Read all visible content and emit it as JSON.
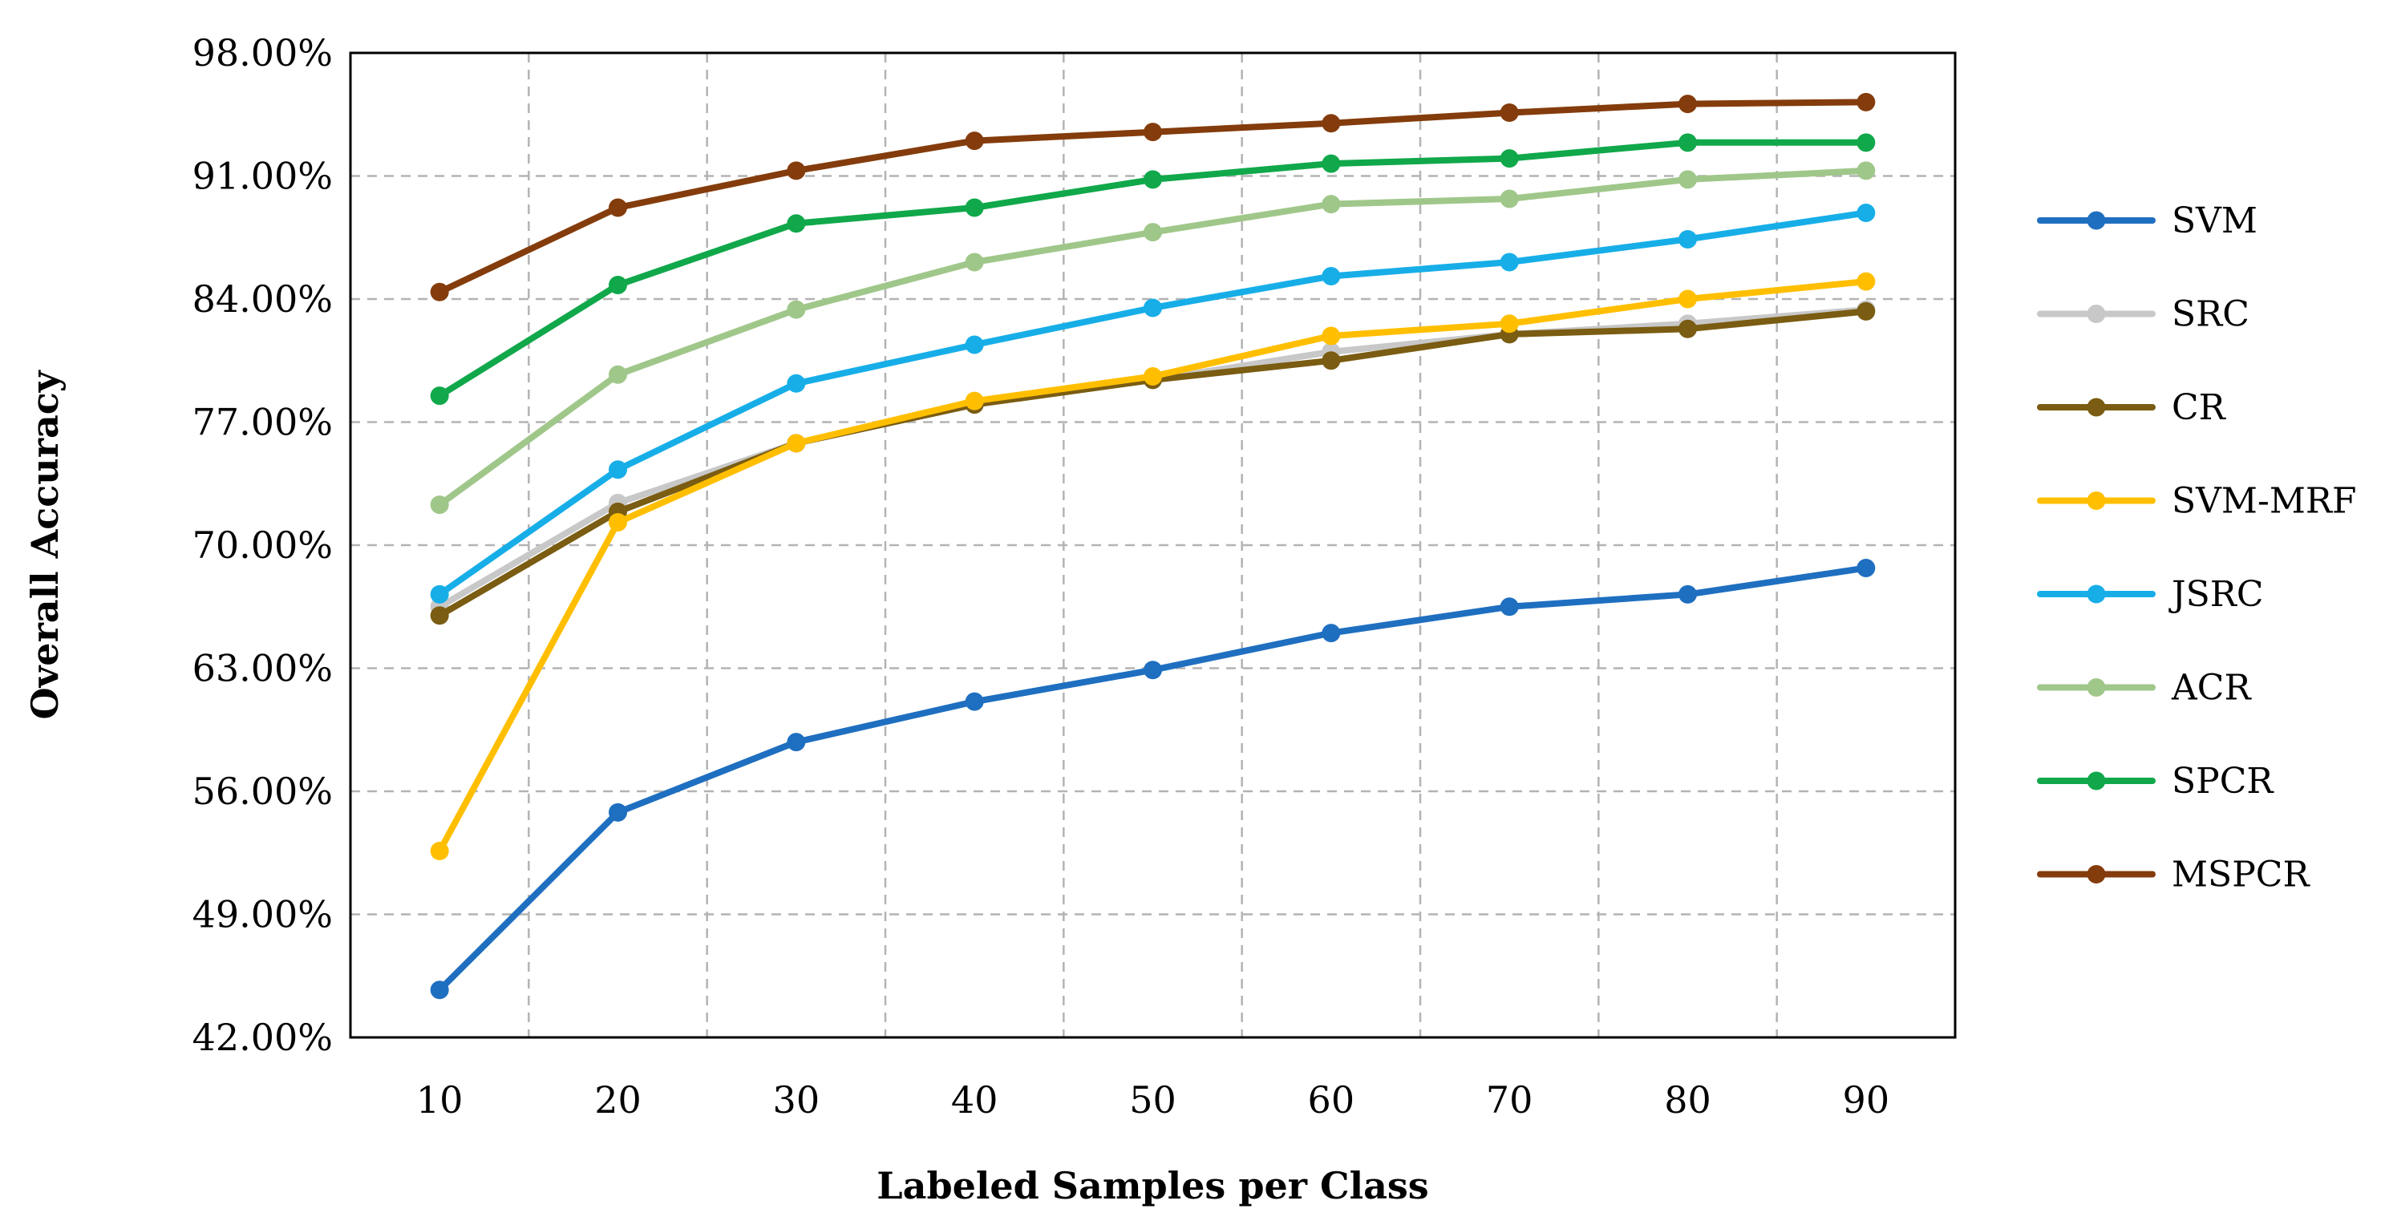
{
  "chart_data": {
    "type": "line",
    "title": "",
    "xlabel": "Labeled Samples per Class",
    "ylabel": "Overall Accuracy",
    "x": [
      10,
      20,
      30,
      40,
      50,
      60,
      70,
      80,
      90
    ],
    "x_tick_labels": [
      "10",
      "20",
      "30",
      "40",
      "50",
      "60",
      "70",
      "80",
      "90"
    ],
    "xlim": [
      5,
      95
    ],
    "ylim": [
      42,
      98
    ],
    "y_ticks": [
      42,
      49,
      56,
      63,
      70,
      77,
      84,
      91,
      98
    ],
    "y_tick_labels": [
      "42.00%",
      "49.00%",
      "56.00%",
      "63.00%",
      "70.00%",
      "77.00%",
      "84.00%",
      "91.00%",
      "98.00%"
    ],
    "grid": true,
    "legend_position": "right",
    "series": [
      {
        "name": "SVM",
        "color": "#1f6fc0",
        "values": [
          44.7,
          54.8,
          58.8,
          61.1,
          62.9,
          65.0,
          66.5,
          67.2,
          68.7
        ]
      },
      {
        "name": "SRC",
        "color": "#c8c8c8",
        "values": [
          66.5,
          72.4,
          75.8,
          78.1,
          79.4,
          81.0,
          82.0,
          82.6,
          83.4
        ]
      },
      {
        "name": "CR",
        "color": "#7a5c12",
        "values": [
          66.0,
          71.9,
          75.8,
          78.0,
          79.4,
          80.5,
          82.0,
          82.3,
          83.3
        ]
      },
      {
        "name": "SVM-MRF",
        "color": "#ffbf00",
        "values": [
          52.6,
          71.3,
          75.8,
          78.2,
          79.6,
          81.9,
          82.6,
          84.0,
          85.0
        ]
      },
      {
        "name": "JSRC",
        "color": "#17aee8",
        "values": [
          67.2,
          74.3,
          79.2,
          81.4,
          83.5,
          85.3,
          86.1,
          87.4,
          88.9
        ]
      },
      {
        "name": "ACR",
        "color": "#a0c78a",
        "values": [
          72.3,
          79.7,
          83.4,
          86.1,
          87.8,
          89.4,
          89.7,
          90.8,
          91.3
        ]
      },
      {
        "name": "SPCR",
        "color": "#10a84a",
        "values": [
          78.5,
          84.8,
          88.3,
          89.2,
          90.8,
          91.7,
          92.0,
          92.9,
          92.9
        ]
      },
      {
        "name": "MSPCR",
        "color": "#843c0c",
        "values": [
          84.4,
          89.2,
          91.3,
          93.0,
          93.5,
          94.0,
          94.6,
          95.1,
          95.2
        ]
      }
    ]
  }
}
